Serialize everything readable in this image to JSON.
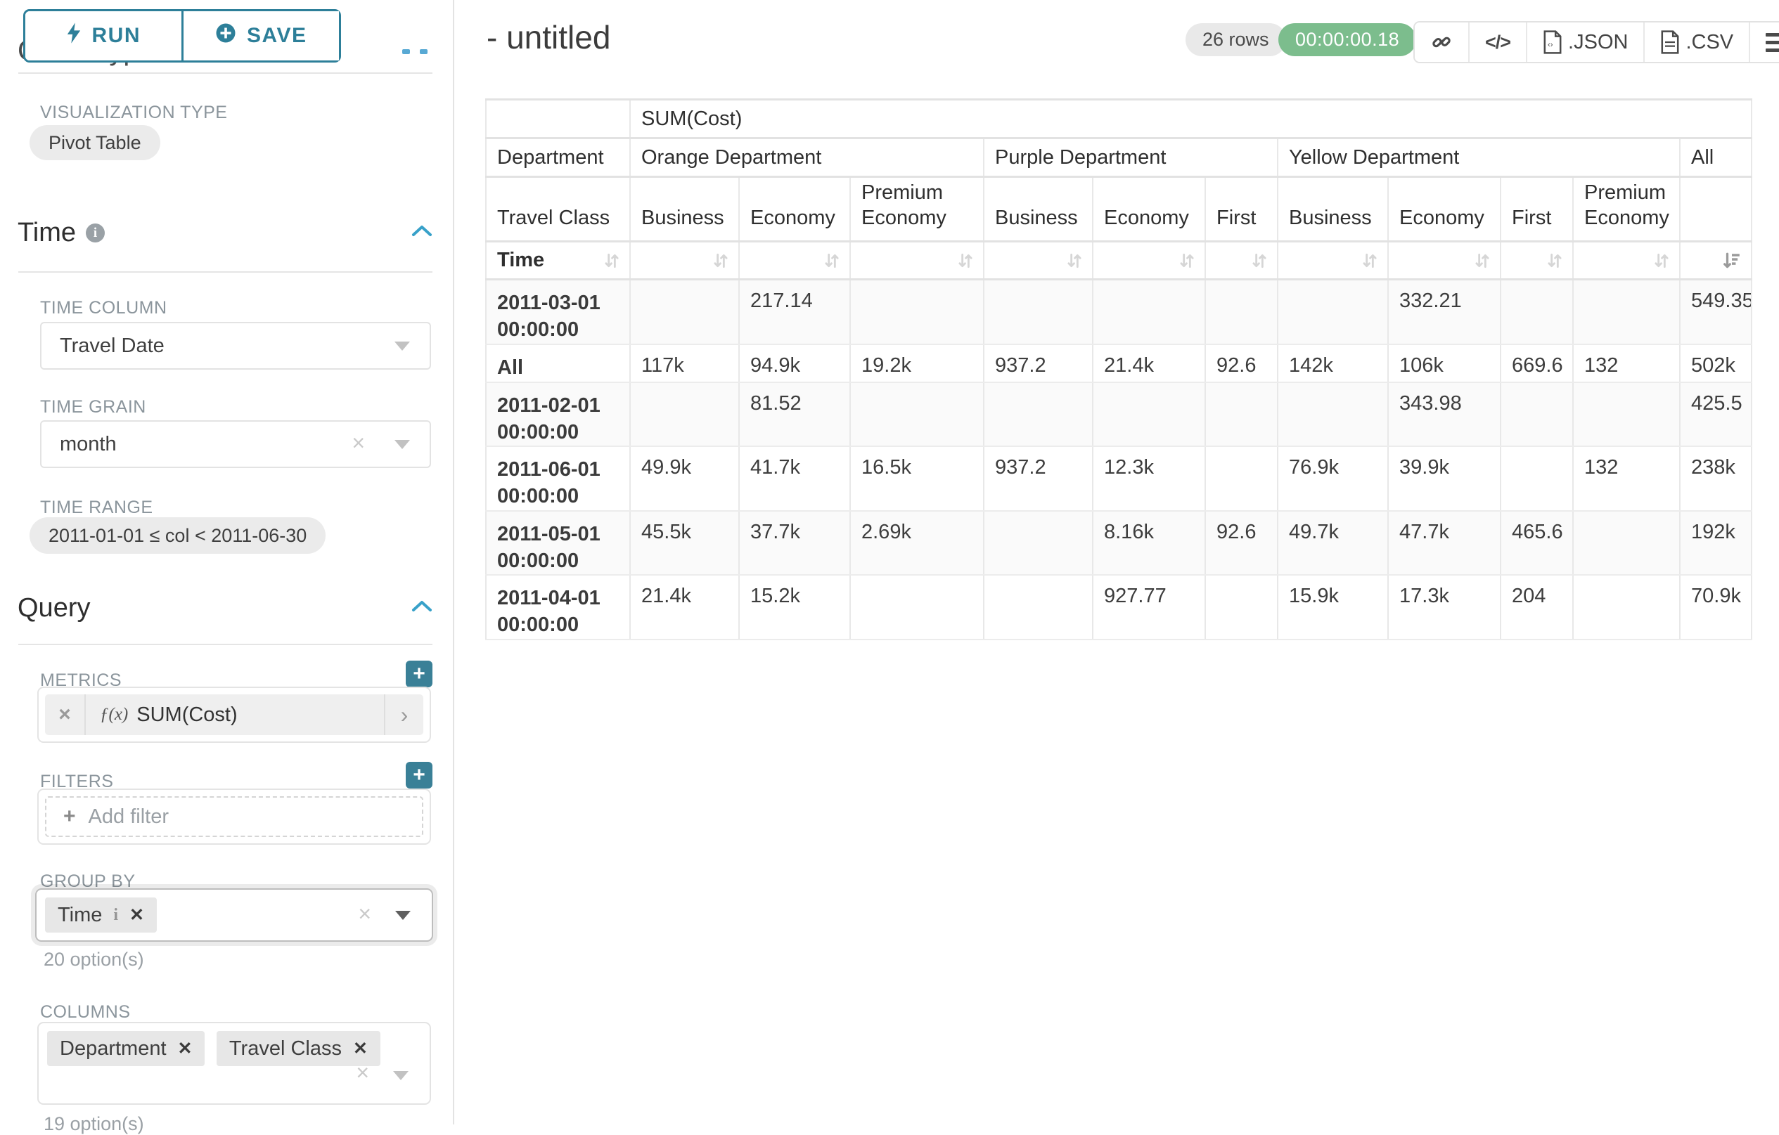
{
  "colors": {
    "teal": "#2d7f99",
    "teal_button": "#3a8097",
    "timer_green": "#7cbd8d",
    "chevron_blue": "#38a1c9"
  },
  "sidebar": {
    "run_label": "RUN",
    "save_label": "SAVE",
    "chart_type_section": "Chart Type",
    "viz_type_label": "VISUALIZATION TYPE",
    "viz_type_value": "Pivot Table",
    "time_section": "Time",
    "time_column_label": "TIME COLUMN",
    "time_column_value": "Travel Date",
    "time_grain_label": "TIME GRAIN",
    "time_grain_value": "month",
    "time_range_label": "TIME RANGE",
    "time_range_value": "2011-01-01 ≤ col < 2011-06-30",
    "query_section": "Query",
    "metrics_label": "METRICS",
    "metric_fx": "ƒ(x)",
    "metric_name": "SUM(Cost)",
    "filters_label": "FILTERS",
    "add_filter_label": "Add filter",
    "group_by_label": "GROUP BY",
    "group_by_tags": [
      "Time"
    ],
    "group_by_helper": "20 option(s)",
    "columns_label": "COLUMNS",
    "columns_tags": [
      "Department",
      "Travel Class"
    ],
    "columns_helper": "19 option(s)"
  },
  "header": {
    "title": "- untitled",
    "row_count": "26 rows",
    "timer": "00:00:00.18",
    "export_json_label": ".JSON",
    "export_csv_label": ".CSV"
  },
  "table": {
    "metric_header": "SUM(Cost)",
    "dept_row_label": "Department",
    "groups": [
      {
        "label": "Orange Department",
        "span": 3
      },
      {
        "label": "Purple Department",
        "span": 3
      },
      {
        "label": "Yellow Department",
        "span": 4
      },
      {
        "label": "All",
        "span": 1
      }
    ],
    "class_row_label": "Travel Class",
    "class_headers": [
      "Business",
      "Economy",
      "Premium Economy",
      "Business",
      "Economy",
      "First",
      "Business",
      "Economy",
      "First",
      "Premium Economy",
      ""
    ],
    "sort_row_label": "Time",
    "rows": [
      {
        "label": "2011-03-01 00:00:00",
        "cells": [
          "",
          "217.14",
          "",
          "",
          "",
          "",
          "",
          "332.21",
          "",
          "",
          "549.35"
        ]
      },
      {
        "label": "All",
        "cells": [
          "117k",
          "94.9k",
          "19.2k",
          "937.2",
          "21.4k",
          "92.6",
          "142k",
          "106k",
          "669.6",
          "132",
          "502k"
        ]
      },
      {
        "label": "2011-02-01 00:00:00",
        "cells": [
          "",
          "81.52",
          "",
          "",
          "",
          "",
          "",
          "343.98",
          "",
          "",
          "425.5"
        ]
      },
      {
        "label": "2011-06-01 00:00:00",
        "cells": [
          "49.9k",
          "41.7k",
          "16.5k",
          "937.2",
          "12.3k",
          "",
          "76.9k",
          "39.9k",
          "",
          "132",
          "238k"
        ]
      },
      {
        "label": "2011-05-01 00:00:00",
        "cells": [
          "45.5k",
          "37.7k",
          "2.69k",
          "",
          "8.16k",
          "92.6",
          "49.7k",
          "47.7k",
          "465.6",
          "",
          "192k"
        ]
      },
      {
        "label": "2011-04-01 00:00:00",
        "cells": [
          "21.4k",
          "15.2k",
          "",
          "",
          "927.77",
          "",
          "15.9k",
          "17.3k",
          "204",
          "",
          "70.9k"
        ]
      }
    ]
  }
}
